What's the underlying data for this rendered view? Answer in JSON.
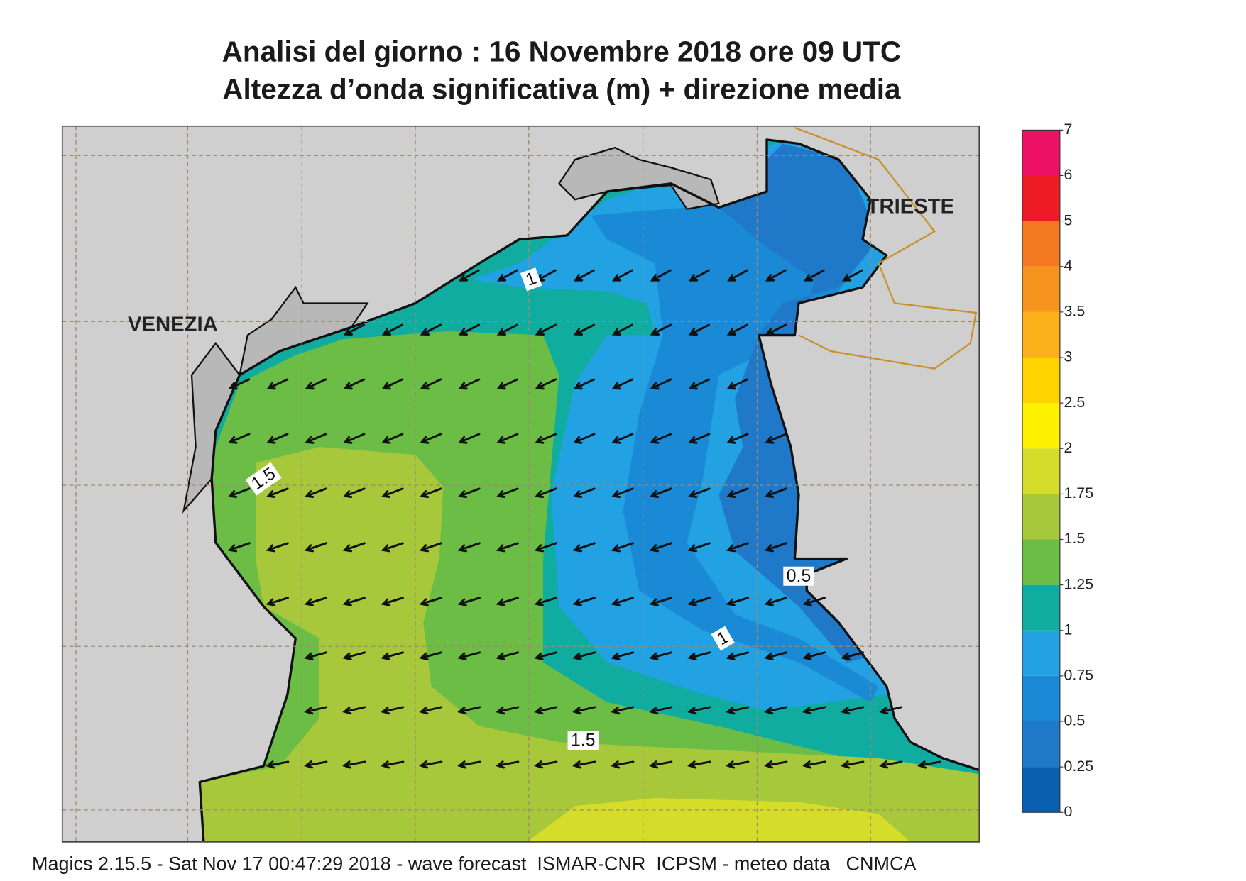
{
  "header": {
    "title": "Analisi del giorno :  16 Novembre  2018   ore 09 UTC",
    "subtitle": "Altezza d’onda significativa (m) + direzione media"
  },
  "map": {
    "places": [
      "VENEZIA",
      "TRIESTE"
    ],
    "contour_labels": [
      "1",
      "1.5",
      "0.5",
      "1",
      "1.5"
    ]
  },
  "colorbar": {
    "levels": [
      0,
      0.25,
      0.5,
      0.75,
      1,
      1.25,
      1.5,
      1.75,
      2,
      2.5,
      3,
      3.5,
      4,
      5,
      6,
      7
    ],
    "colors": [
      "#0a5fb0",
      "#1f78c8",
      "#1a8ad6",
      "#22a2e2",
      "#10aca0",
      "#6cbd45",
      "#a6c83a",
      "#d6dc2a",
      "#fff200",
      "#ffd400",
      "#fbb21a",
      "#f7941d",
      "#f47920",
      "#ed1c24",
      "#ec1164"
    ]
  },
  "footer": "Magics 2.15.5 - Sat Nov 17 00:47:29 2018 - wave forecast  ISMAR-CNR  ICPSM - meteo data   CNMCA"
}
